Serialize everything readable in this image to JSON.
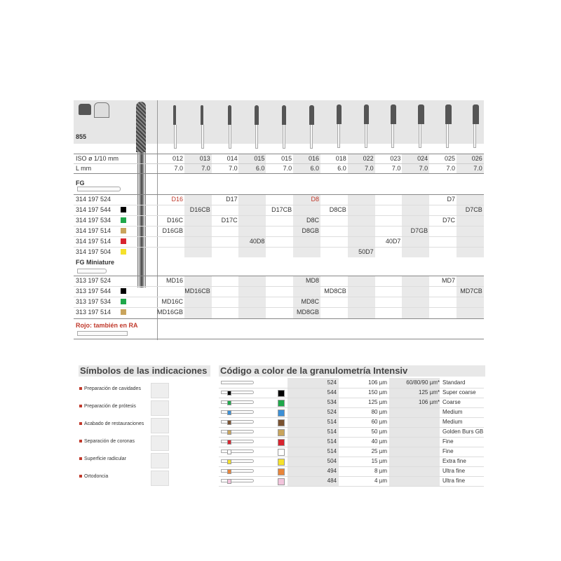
{
  "product": {
    "number": "855"
  },
  "header": {
    "iso_label": "ISO ø 1/10 mm",
    "l_label": "L mm"
  },
  "columns": {
    "iso": [
      "012",
      "013",
      "014",
      "015",
      "015",
      "016",
      "018",
      "022",
      "023",
      "024",
      "025",
      "026"
    ],
    "length": [
      "7.0",
      "7.0",
      "7.0",
      "6.0",
      "7.0",
      "6.0",
      "6.0",
      "7.0",
      "7.0",
      "7.0",
      "7.0",
      "7.0"
    ]
  },
  "sections": [
    {
      "title": "FG",
      "rows": [
        {
          "code": "314 197 524",
          "swatch": "",
          "cells": [
            "D16",
            "",
            "D17",
            "",
            "",
            "D8",
            "",
            "",
            "",
            "",
            "D7",
            ""
          ],
          "red": [
            0,
            5
          ]
        },
        {
          "code": "314 197 544",
          "swatch": "#000000",
          "cells": [
            "",
            "D16CB",
            "",
            "",
            "D17CB",
            "",
            "D8CB",
            "",
            "",
            "",
            "",
            "D7CB"
          ]
        },
        {
          "code": "314 197 534",
          "swatch": "#1fa84a",
          "cells": [
            "D16C",
            "",
            "D17C",
            "",
            "",
            "D8C",
            "",
            "",
            "",
            "",
            "D7C",
            ""
          ]
        },
        {
          "code": "314 197 514",
          "swatch": "#c9a45c",
          "cells": [
            "D16GB",
            "",
            "",
            "",
            "",
            "D8GB",
            "",
            "",
            "",
            "D7GB",
            "",
            ""
          ]
        },
        {
          "code": "314 197 514",
          "swatch": "#d8242f",
          "cells": [
            "",
            "",
            "",
            "40D8",
            "",
            "",
            "",
            "",
            "40D7",
            "",
            "",
            ""
          ]
        },
        {
          "code": "314 197 504",
          "swatch": "#f5e12b",
          "cells": [
            "",
            "",
            "",
            "",
            "",
            "",
            "",
            "50D7",
            "",
            "",
            "",
            ""
          ]
        }
      ]
    },
    {
      "title": "FG Miniature",
      "rows": [
        {
          "code": "313 197 524",
          "swatch": "",
          "cells": [
            "MD16",
            "",
            "",
            "",
            "",
            "MD8",
            "",
            "",
            "",
            "",
            "MD7",
            ""
          ]
        },
        {
          "code": "313 197 544",
          "swatch": "#000000",
          "cells": [
            "",
            "MD16CB",
            "",
            "",
            "",
            "",
            "MD8CB",
            "",
            "",
            "",
            "",
            "MD7CB"
          ]
        },
        {
          "code": "313 197 534",
          "swatch": "#1fa84a",
          "cells": [
            "MD16C",
            "",
            "",
            "",
            "",
            "MD8C",
            "",
            "",
            "",
            "",
            "",
            ""
          ]
        },
        {
          "code": "313 197 514",
          "swatch": "#c9a45c",
          "cells": [
            "MD16GB",
            "",
            "",
            "",
            "",
            "MD8GB",
            "",
            "",
            "",
            "",
            "",
            ""
          ]
        }
      ]
    }
  ],
  "note": {
    "text": "Rojo: también en RA",
    "color": "#c0392b"
  },
  "indications": {
    "title": "Símbolos de las indicaciones",
    "items": [
      {
        "label": "Preparación de cavidades",
        "icon": "cavity-preparation-icon"
      },
      {
        "label": "Preparación de prótesis",
        "icon": "prosthesis-preparation-icon"
      },
      {
        "label": "Acabado de restauraciones",
        "icon": "restoration-finishing-icon"
      },
      {
        "label": "Separación de coronas",
        "icon": "crown-separation-icon"
      },
      {
        "label": "Superficie radicular",
        "icon": "root-surface-icon"
      },
      {
        "label": "Ortodoncia",
        "icon": "orthodontics-icon"
      }
    ]
  },
  "grit": {
    "title": "Código a color de la granulometría Intensiv",
    "rows": [
      {
        "color": "",
        "code": "524",
        "size": "106 µm",
        "alt": "60/80/90 µm*",
        "name": "Standard"
      },
      {
        "color": "#000000",
        "code": "544",
        "size": "150 µm",
        "alt": "125 µm*",
        "name": "Super coarse"
      },
      {
        "color": "#1fa84a",
        "code": "534",
        "size": "125 µm",
        "alt": "106 µm*",
        "name": "Coarse"
      },
      {
        "color": "#3b8fd6",
        "code": "524",
        "size": "80 µm",
        "alt": "",
        "name": "Medium"
      },
      {
        "color": "#7a5230",
        "code": "514",
        "size": "60 µm",
        "alt": "",
        "name": "Medium"
      },
      {
        "color": "#c9a45c",
        "code": "514",
        "size": "50 µm",
        "alt": "",
        "name": "Golden Burs GB"
      },
      {
        "color": "#d8242f",
        "code": "514",
        "size": "40 µm",
        "alt": "",
        "name": "Fine"
      },
      {
        "color": "#ffffff",
        "code": "514",
        "size": "25 µm",
        "alt": "",
        "name": "Fine"
      },
      {
        "color": "#f5e12b",
        "code": "504",
        "size": "15 µm",
        "alt": "",
        "name": "Extra fine"
      },
      {
        "color": "#e8853a",
        "code": "494",
        "size": "8 µm",
        "alt": "",
        "name": "Ultra fine"
      },
      {
        "color": "#f2c4dc",
        "code": "484",
        "size": "4 µm",
        "alt": "",
        "name": "Ultra fine"
      }
    ]
  }
}
